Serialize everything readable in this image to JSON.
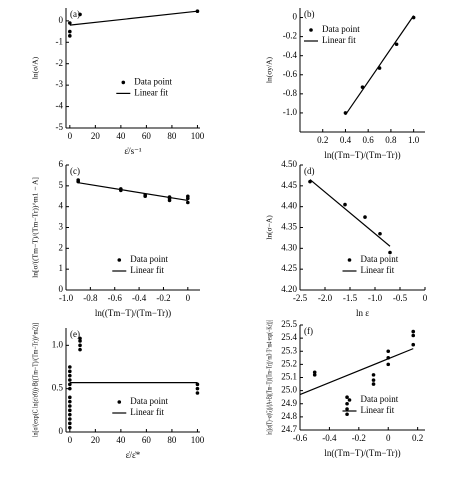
{
  "chart_data": [
    {
      "type": "scatter",
      "label": "(a)",
      "x_label": "ε̇/s⁻¹",
      "y_label": "ln(σ/A)",
      "xlim": [
        -3,
        102
      ],
      "ylim": [
        -5,
        0.6
      ],
      "xticks": [
        0,
        20,
        40,
        60,
        80,
        100
      ],
      "yticks": [
        0,
        -1,
        -2,
        -3,
        -4,
        -5
      ],
      "legend": "center right",
      "series": [
        {
          "name": "Data point",
          "color": "#000000",
          "style": "points",
          "x": [
            0,
            0,
            0,
            8,
            100
          ],
          "values": [
            -0.1,
            -0.5,
            -0.7,
            0.3,
            0.45
          ]
        },
        {
          "name": "Linear fit",
          "color": "#000000",
          "style": "line",
          "x": [
            0,
            100
          ],
          "values": [
            -0.2,
            0.45
          ]
        }
      ]
    },
    {
      "type": "scatter",
      "label": "(b)",
      "x_label": "ln((Tm−T)/(Tm−Tr))",
      "y_label": "ln(σy/A)",
      "xlim": [
        0,
        1.1
      ],
      "ylim": [
        -1.2,
        0.1
      ],
      "xticks": [
        0.2,
        0.4,
        0.6,
        0.8,
        {
          "value": 1,
          "label": "1.0"
        }
      ],
      "yticks": [
        0,
        -0.2,
        -0.4,
        -0.6,
        -0.8,
        {
          "value": -1,
          "label": "-1.0"
        }
      ],
      "legend": "upper left",
      "series": [
        {
          "name": "Data point",
          "color": "#000000",
          "style": "points",
          "x": [
            0.4,
            0.55,
            0.7,
            0.85,
            1.0
          ],
          "values": [
            -1.0,
            -0.73,
            -0.53,
            -0.28,
            0.0
          ]
        },
        {
          "name": "Linear fit",
          "color": "#000000",
          "style": "line",
          "x": [
            0.4,
            1.0
          ],
          "values": [
            -1.02,
            0.02
          ]
        }
      ]
    },
    {
      "type": "scatter",
      "label": "(c)",
      "x_label": "ln((Tm−T)/(Tm−Tr))",
      "y_label": "ln[σ/((Tm−T)/(Tm−Tr))^m1 − A]",
      "xlim": [
        -1,
        0.1
      ],
      "ylim": [
        0,
        6
      ],
      "xticks": [
        {
          "value": -1,
          "label": "-1.0"
        },
        -0.8,
        -0.6,
        -0.4,
        -0.2,
        0
      ],
      "yticks": [
        0,
        1,
        2,
        3,
        4,
        5,
        6
      ],
      "legend": "lower right",
      "series": [
        {
          "name": "Data point",
          "color": "#000000",
          "style": "points",
          "x": [
            -0.9,
            -0.9,
            -0.55,
            -0.55,
            -0.35,
            -0.35,
            -0.15,
            -0.15,
            -0.15,
            0,
            0,
            0
          ],
          "values": [
            5.2,
            5.28,
            4.85,
            4.78,
            4.5,
            4.56,
            4.4,
            4.3,
            4.46,
            4.2,
            4.4,
            4.5
          ]
        },
        {
          "name": "Linear fit",
          "color": "#000000",
          "style": "line",
          "x": [
            -0.9,
            0
          ],
          "values": [
            5.15,
            4.3
          ]
        }
      ]
    },
    {
      "type": "scatter",
      "label": "(d)",
      "x_label": "ln ε",
      "y_label": "ln(σ−A)",
      "xlim": [
        -2.5,
        0
      ],
      "ylim": [
        4.2,
        4.5
      ],
      "xticks": [
        -2.5,
        {
          "value": -2,
          "label": "-2.0"
        },
        -1.5,
        {
          "value": -1,
          "label": "-1.0"
        },
        -0.5,
        0
      ],
      "yticks": [
        {
          "value": 4.2,
          "label": "4.20"
        },
        4.25,
        {
          "value": 4.3,
          "label": "4.30"
        },
        4.35,
        {
          "value": 4.4,
          "label": "4.40"
        },
        4.45,
        {
          "value": 4.5,
          "label": "4.50"
        }
      ],
      "legend": "lower right",
      "series": [
        {
          "name": "Data point",
          "color": "#000000",
          "style": "points",
          "x": [
            -2.3,
            -1.6,
            -1.2,
            -0.9,
            -0.7
          ],
          "values": [
            4.46,
            4.405,
            4.375,
            4.335,
            4.29
          ]
        },
        {
          "name": "Linear fit",
          "color": "#000000",
          "style": "line",
          "x": [
            -2.3,
            -0.7
          ],
          "values": [
            4.465,
            4.305
          ]
        }
      ]
    },
    {
      "type": "scatter",
      "label": "(e)",
      "x_label": "ε̇/ε̇*",
      "y_label": "ln[σ/(exp(C ln(ε̇/ε̇0))·B((Tm−T)/(Tm−Tr))^m2)]",
      "xlim": [
        -3,
        102
      ],
      "ylim": [
        0,
        1.2
      ],
      "xticks": [
        0,
        20,
        40,
        60,
        80,
        100
      ],
      "yticks": [
        0,
        0.5,
        {
          "value": 1,
          "label": "1.0"
        }
      ],
      "legend": "lower right",
      "series": [
        {
          "name": "Data point",
          "color": "#000000",
          "style": "points",
          "x": [
            0,
            0,
            0,
            0,
            0,
            0,
            0,
            0,
            0,
            0,
            0,
            0,
            0,
            0,
            8,
            8,
            8,
            8,
            100,
            100,
            100
          ],
          "values": [
            0.05,
            0.1,
            0.15,
            0.2,
            0.25,
            0.3,
            0.35,
            0.4,
            0.5,
            0.55,
            0.6,
            0.65,
            0.7,
            0.75,
            0.95,
            1.0,
            1.05,
            1.08,
            0.45,
            0.5,
            0.55
          ]
        },
        {
          "name": "Linear fit",
          "color": "#000000",
          "style": "line",
          "x": [
            0,
            100
          ],
          "values": [
            0.57,
            0.57
          ]
        }
      ]
    },
    {
      "type": "scatter",
      "label": "(f)",
      "x_label": "ln((Tm−T)/(Tm−Tr))",
      "y_label": "ln[(σ(T)−σ(G))/(A+B((Tm−T)/(Tm−Tr))^m3·T^m4·exp(−Kε̇))]",
      "xlim": [
        -0.6,
        0.25
      ],
      "ylim": [
        24.7,
        25.5
      ],
      "xticks": [
        -0.6,
        -0.4,
        -0.2,
        0,
        0.2
      ],
      "yticks": [
        24.7,
        24.8,
        24.9,
        {
          "value": 25,
          "label": "25.0"
        },
        25.1,
        25.2,
        25.3,
        25.4,
        25.5
      ],
      "legend": "lower right",
      "series": [
        {
          "name": "Data point",
          "color": "#000000",
          "style": "points",
          "x": [
            -0.5,
            -0.5,
            -0.28,
            -0.28,
            -0.28,
            -0.28,
            -0.1,
            -0.1,
            -0.1,
            0,
            0,
            0,
            0.17,
            0.17,
            0.17
          ],
          "values": [
            25.12,
            25.14,
            24.95,
            24.9,
            24.86,
            24.82,
            25.05,
            25.08,
            25.12,
            25.2,
            25.25,
            25.3,
            25.35,
            25.42,
            25.45
          ]
        },
        {
          "name": "Linear fit",
          "color": "#000000",
          "style": "line",
          "x": [
            -0.6,
            0.17
          ],
          "values": [
            24.97,
            25.32
          ]
        }
      ]
    }
  ]
}
